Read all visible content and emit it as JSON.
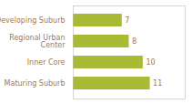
{
  "chart_data": {
    "type": "bar",
    "orientation": "horizontal",
    "categories": [
      "Developing Suburb",
      "Regional Urban\nCenter",
      "Inner Core",
      "Maturing Suburb"
    ],
    "values": [
      7,
      8,
      10,
      11
    ],
    "color": "#a9bb35",
    "xlim": [
      0,
      16
    ],
    "grid": false,
    "data_labels": true,
    "tick_labels": "y"
  }
}
